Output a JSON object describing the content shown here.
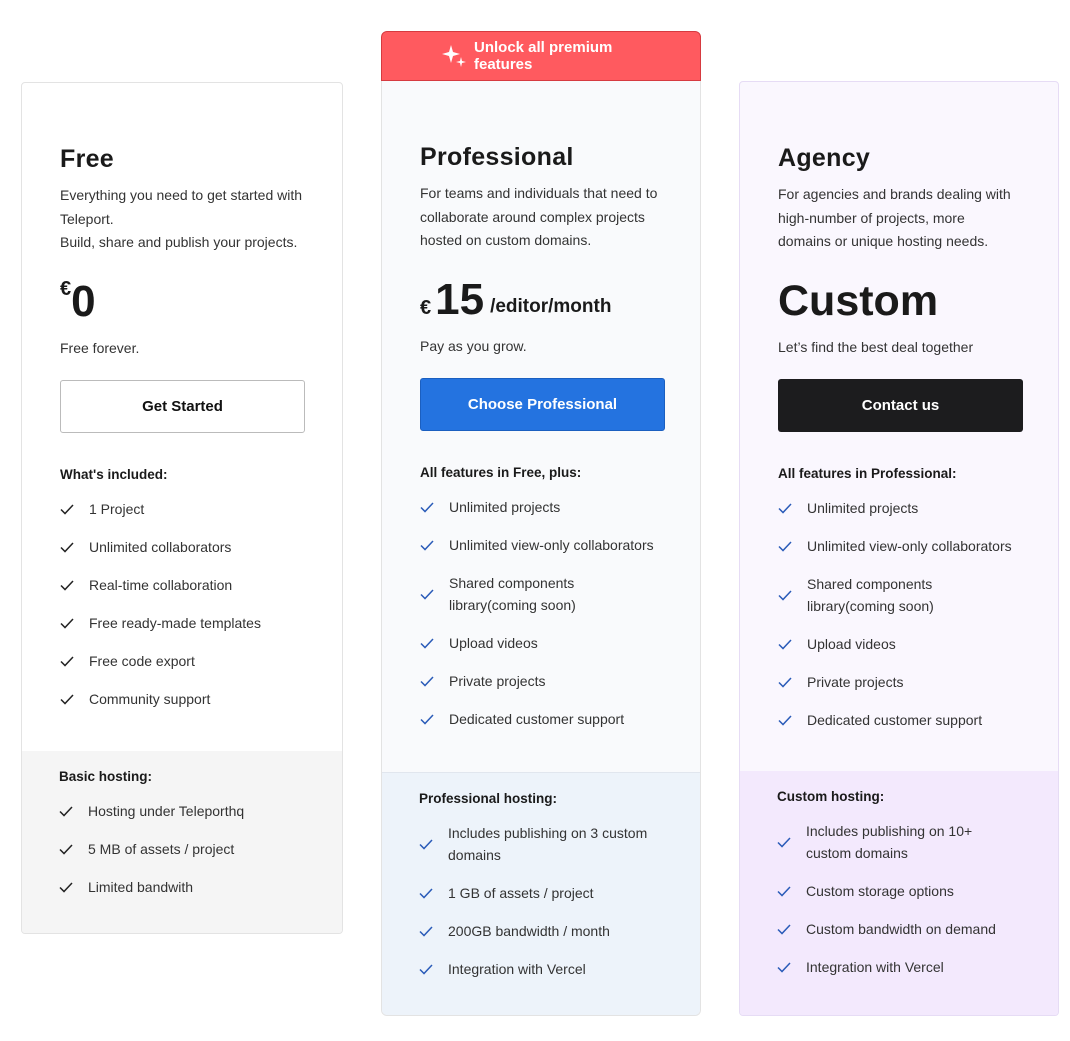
{
  "banner": {
    "label": "Unlock all premium features",
    "icon": "sparkles-icon"
  },
  "colors": {
    "banner": "#ff5a5f",
    "primary": "#2473e0",
    "dark": "#1c1c1e",
    "check_blue": "#2a5bb8"
  },
  "plans": [
    {
      "id": "free",
      "title": "Free",
      "description": [
        "Everything you need to get started with Teleport.",
        "Build, share and publish your projects."
      ],
      "currency": "€",
      "price": "0",
      "period": "",
      "subtitle": "Free forever.",
      "button": "Get Started",
      "features_heading": "What's included:",
      "features": [
        "1 Project",
        "Unlimited collaborators",
        "Real-time collaboration",
        "Free ready-made templates",
        "Free code export",
        "Community support"
      ],
      "hosting_heading": "Basic hosting:",
      "hosting": [
        "Hosting under Teleporthq",
        "5 MB of assets / project",
        "Limited bandwith"
      ]
    },
    {
      "id": "pro",
      "title": "Professional",
      "description": [
        "For teams and individuals that need to collaborate around complex projects hosted on custom domains."
      ],
      "currency": "€",
      "price": "15",
      "period": "/editor/month",
      "subtitle": "Pay as you grow.",
      "button": "Choose Professional",
      "features_heading": "All features in Free, plus:",
      "features": [
        "Unlimited projects",
        "Unlimited view-only collaborators",
        "Shared components library(coming soon)",
        "Upload videos",
        "Private projects",
        "Dedicated customer support"
      ],
      "hosting_heading": "Professional hosting:",
      "hosting": [
        "Includes publishing on 3 custom domains",
        "1 GB of assets / project",
        "200GB bandwidth / month",
        "Integration with Vercel"
      ]
    },
    {
      "id": "agency",
      "title": "Agency",
      "description": [
        "For agencies and brands dealing with high-number of projects, more domains or unique hosting needs."
      ],
      "currency": "",
      "price": "Custom",
      "period": "",
      "subtitle": "Let’s find the best deal together",
      "button": "Contact us",
      "features_heading": "All features in Professional:",
      "features": [
        "Unlimited projects",
        "Unlimited view-only collaborators",
        "Shared components library(coming soon)",
        "Upload videos",
        "Private projects",
        "Dedicated customer support"
      ],
      "hosting_heading": "Custom hosting:",
      "hosting": [
        "Includes publishing on 10+ custom domains",
        "Custom storage options",
        "Custom bandwidth on demand",
        "Integration with Vercel"
      ]
    }
  ]
}
